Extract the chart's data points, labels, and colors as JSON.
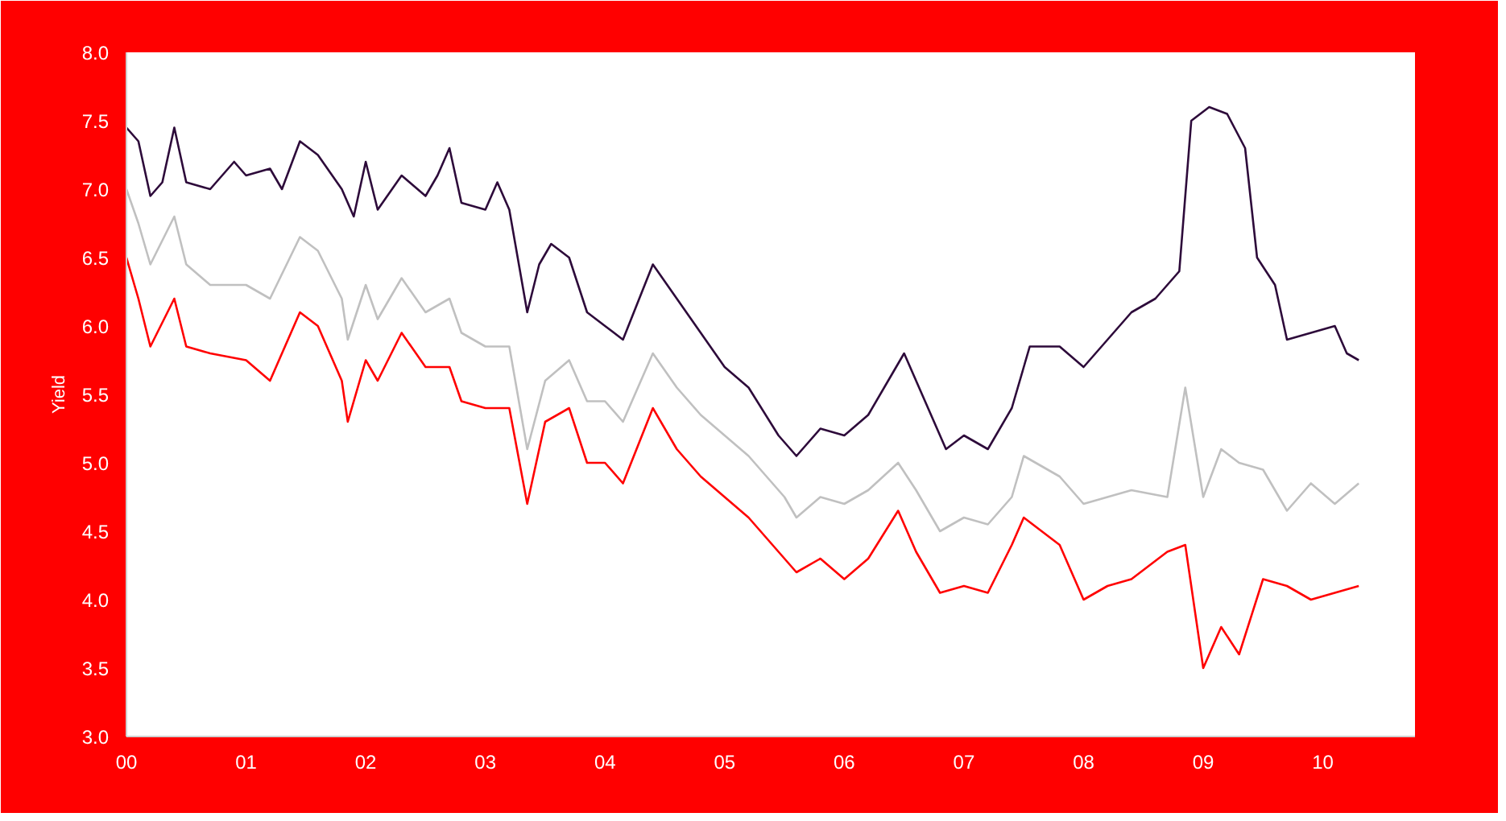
{
  "chart_data": {
    "type": "line",
    "ylabel": "Yield",
    "xlim": [
      0,
      10.77
    ],
    "ylim": [
      3.0,
      8.0
    ],
    "xticks": [
      {
        "value": 0,
        "label": "00"
      },
      {
        "value": 1,
        "label": "01"
      },
      {
        "value": 2,
        "label": "02"
      },
      {
        "value": 3,
        "label": "03"
      },
      {
        "value": 4,
        "label": "04"
      },
      {
        "value": 5,
        "label": "05"
      },
      {
        "value": 6,
        "label": "06"
      },
      {
        "value": 7,
        "label": "07"
      },
      {
        "value": 8,
        "label": "08"
      },
      {
        "value": 9,
        "label": "09"
      },
      {
        "value": 10,
        "label": "10"
      }
    ],
    "yticks": [
      {
        "value": 3,
        "label": "3.0"
      },
      {
        "value": 3.5,
        "label": "3.5"
      },
      {
        "value": 4,
        "label": "4.0"
      },
      {
        "value": 4.5,
        "label": "4.5"
      },
      {
        "value": 5,
        "label": "5.0"
      },
      {
        "value": 5.5,
        "label": "5.5"
      },
      {
        "value": 6,
        "label": "6.0"
      },
      {
        "value": 6.5,
        "label": "6.5"
      },
      {
        "value": 7,
        "label": "7.0"
      },
      {
        "value": 7.5,
        "label": "7.5"
      },
      {
        "value": 8,
        "label": "8.0"
      }
    ],
    "grid": false,
    "series": [
      {
        "color": "#2d0a3a",
        "x": [
          0,
          0.1,
          0.2,
          0.3,
          0.4,
          0.5,
          0.7,
          0.9,
          1.0,
          1.2,
          1.3,
          1.45,
          1.6,
          1.8,
          1.9,
          2.0,
          2.1,
          2.3,
          2.5,
          2.6,
          2.7,
          2.8,
          3.0,
          3.1,
          3.2,
          3.35,
          3.45,
          3.55,
          3.7,
          3.85,
          4.0,
          4.15,
          4.4,
          4.6,
          4.8,
          5.0,
          5.2,
          5.45,
          5.6,
          5.8,
          6.0,
          6.2,
          6.4,
          6.5,
          6.7,
          6.85,
          7.0,
          7.2,
          7.4,
          7.55,
          7.8,
          8.0,
          8.2,
          8.4,
          8.6,
          8.8,
          8.9,
          9.05,
          9.2,
          9.35,
          9.45,
          9.6,
          9.7,
          9.9,
          10.1,
          10.2,
          10.3
        ],
        "values": [
          7.45,
          7.35,
          6.95,
          7.05,
          7.45,
          7.05,
          7.0,
          7.2,
          7.1,
          7.15,
          7.0,
          7.35,
          7.25,
          7.0,
          6.8,
          7.2,
          6.85,
          7.1,
          6.95,
          7.1,
          7.3,
          6.9,
          6.85,
          7.05,
          6.85,
          6.1,
          6.45,
          6.6,
          6.5,
          6.1,
          6.0,
          5.9,
          6.45,
          6.2,
          5.95,
          5.7,
          5.55,
          5.2,
          5.05,
          5.25,
          5.2,
          5.35,
          5.65,
          5.8,
          5.4,
          5.1,
          5.2,
          5.1,
          5.4,
          5.85,
          5.85,
          5.7,
          5.9,
          6.1,
          6.2,
          6.4,
          7.5,
          7.6,
          7.55,
          7.3,
          6.5,
          6.3,
          5.9,
          5.95,
          6.0,
          5.8,
          5.75
        ]
      },
      {
        "color": "#c0c0c0",
        "x": [
          0,
          0.1,
          0.2,
          0.4,
          0.5,
          0.7,
          1.0,
          1.2,
          1.45,
          1.6,
          1.8,
          1.85,
          2.0,
          2.1,
          2.3,
          2.5,
          2.7,
          2.8,
          3.0,
          3.2,
          3.35,
          3.5,
          3.7,
          3.85,
          4.0,
          4.15,
          4.4,
          4.6,
          4.8,
          5.0,
          5.2,
          5.5,
          5.6,
          5.8,
          6.0,
          6.2,
          6.45,
          6.6,
          6.8,
          7.0,
          7.2,
          7.4,
          7.5,
          7.8,
          8.0,
          8.2,
          8.4,
          8.7,
          8.85,
          9.0,
          9.15,
          9.3,
          9.5,
          9.7,
          9.9,
          10.1,
          10.3
        ],
        "values": [
          7.0,
          6.75,
          6.45,
          6.8,
          6.45,
          6.3,
          6.3,
          6.2,
          6.65,
          6.55,
          6.2,
          5.9,
          6.3,
          6.05,
          6.35,
          6.1,
          6.2,
          5.95,
          5.85,
          5.85,
          5.1,
          5.6,
          5.75,
          5.45,
          5.45,
          5.3,
          5.8,
          5.55,
          5.35,
          5.2,
          5.05,
          4.75,
          4.6,
          4.75,
          4.7,
          4.8,
          5.0,
          4.8,
          4.5,
          4.6,
          4.55,
          4.75,
          5.05,
          4.9,
          4.7,
          4.75,
          4.8,
          4.75,
          5.55,
          4.75,
          5.1,
          5.0,
          4.95,
          4.65,
          4.85,
          4.7,
          4.85
        ]
      },
      {
        "color": "#ff0000",
        "x": [
          0,
          0.1,
          0.2,
          0.4,
          0.5,
          0.7,
          1.0,
          1.2,
          1.45,
          1.6,
          1.8,
          1.85,
          2.0,
          2.1,
          2.3,
          2.5,
          2.7,
          2.8,
          3.0,
          3.2,
          3.35,
          3.5,
          3.7,
          3.85,
          4.0,
          4.15,
          4.4,
          4.6,
          4.8,
          5.0,
          5.2,
          5.5,
          5.6,
          5.8,
          6.0,
          6.2,
          6.45,
          6.6,
          6.8,
          7.0,
          7.2,
          7.4,
          7.5,
          7.8,
          8.0,
          8.2,
          8.4,
          8.7,
          8.85,
          9.0,
          9.15,
          9.3,
          9.5,
          9.7,
          9.9,
          10.1,
          10.3
        ],
        "values": [
          6.5,
          6.2,
          5.85,
          6.2,
          5.85,
          5.8,
          5.75,
          5.6,
          6.1,
          6.0,
          5.6,
          5.3,
          5.75,
          5.6,
          5.95,
          5.7,
          5.7,
          5.45,
          5.4,
          5.4,
          4.7,
          5.3,
          5.4,
          5.0,
          5.0,
          4.85,
          5.4,
          5.1,
          4.9,
          4.75,
          4.6,
          4.3,
          4.2,
          4.3,
          4.15,
          4.3,
          4.65,
          4.35,
          4.05,
          4.1,
          4.05,
          4.4,
          4.6,
          4.4,
          4.0,
          4.1,
          4.15,
          4.35,
          4.4,
          3.5,
          3.8,
          3.6,
          4.15,
          4.1,
          4.0,
          4.05,
          4.1
        ]
      }
    ]
  }
}
